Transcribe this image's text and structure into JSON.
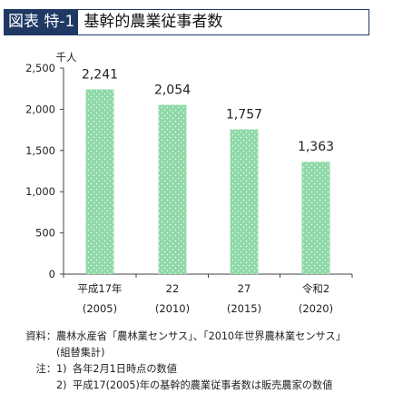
{
  "header": {
    "tag": "図表 特-1",
    "title": "基幹的農業従事者数"
  },
  "chart_data": {
    "type": "bar",
    "unit_label": "千人",
    "categories": [
      {
        "era": "平成17年",
        "year": "(2005)"
      },
      {
        "era": "22",
        "year": "(2010)"
      },
      {
        "era": "27",
        "year": "(2015)"
      },
      {
        "era": "令和2",
        "year": "(2020)"
      }
    ],
    "values": [
      2241,
      2054,
      1757,
      1363
    ],
    "value_labels": [
      "2,241",
      "2,054",
      "1,757",
      "1,363"
    ],
    "ylim": [
      0,
      2500
    ],
    "yticks": [
      0,
      500,
      1000,
      1500,
      2000,
      2500
    ],
    "ytick_labels": [
      "0",
      "500",
      "1,000",
      "1,500",
      "2,000",
      "2,500"
    ],
    "bar_color": "#8fd9a8",
    "grid": false
  },
  "footer": {
    "source_label": "資料：",
    "source_line1": "農林水産省「農林業センサス」、「2010年世界農林業センサス」",
    "source_line2": "(組替集計)",
    "notes_label": "注：",
    "notes": [
      {
        "num": "1)",
        "text": "各年2月1日時点の数値"
      },
      {
        "num": "2)",
        "text": "平成17(2005)年の基幹的農業従事者数は販売農家の数値"
      }
    ]
  }
}
